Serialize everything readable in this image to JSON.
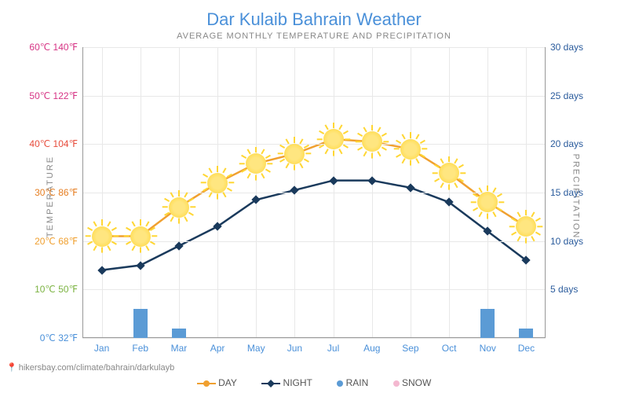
{
  "title": "Dar Kulaib Bahrain Weather",
  "subtitle": "AVERAGE MONTHLY TEMPERATURE AND PRECIPITATION",
  "y_label_left": "TEMPERATURE",
  "y_label_right": "PRECIPITATION",
  "footer_url": "hikersbay.com/climate/bahrain/darkulayb",
  "temp_axis": {
    "min_c": 0,
    "max_c": 60,
    "ticks": [
      {
        "c": 0,
        "label": "0℃ 32℉",
        "color": "#4a90d9"
      },
      {
        "c": 10,
        "label": "10℃ 50℉",
        "color": "#7cb342"
      },
      {
        "c": 20,
        "label": "20℃ 68℉",
        "color": "#f0a030"
      },
      {
        "c": 30,
        "label": "30℃ 86℉",
        "color": "#e67e22"
      },
      {
        "c": 40,
        "label": "40℃ 104℉",
        "color": "#e74c3c"
      },
      {
        "c": 50,
        "label": "50℃ 122℉",
        "color": "#d63384"
      },
      {
        "c": 60,
        "label": "60℃ 140℉",
        "color": "#d63384"
      }
    ]
  },
  "precip_axis": {
    "min": 0,
    "max": 30,
    "ticks": [
      {
        "v": 5,
        "label": "5 days"
      },
      {
        "v": 10,
        "label": "10 days"
      },
      {
        "v": 15,
        "label": "15 days"
      },
      {
        "v": 20,
        "label": "20 days"
      },
      {
        "v": 25,
        "label": "25 days"
      },
      {
        "v": 30,
        "label": "30 days"
      }
    ]
  },
  "months": [
    "Jan",
    "Feb",
    "Mar",
    "Apr",
    "May",
    "Jun",
    "Jul",
    "Aug",
    "Sep",
    "Oct",
    "Nov",
    "Dec"
  ],
  "day_temps_c": [
    21,
    21,
    27,
    32,
    36,
    38,
    41,
    40.5,
    39,
    34,
    28,
    23
  ],
  "night_temps_c": [
    14,
    15,
    19,
    23,
    28.5,
    30.5,
    32.5,
    32.5,
    31,
    28,
    22,
    16
  ],
  "rain_days": [
    0,
    3,
    1,
    0,
    0,
    0,
    0,
    0,
    0,
    0,
    3,
    1
  ],
  "colors": {
    "day_line": "#f0a030",
    "night_line": "#1a3a5c",
    "rain": "#5b9bd5",
    "snow": "#f4b8d0",
    "title": "#4a90d9",
    "grid": "#e8e8e8"
  },
  "legend": {
    "day": "DAY",
    "night": "NIGHT",
    "rain": "RAIN",
    "snow": "SNOW"
  },
  "sun_size": 26
}
